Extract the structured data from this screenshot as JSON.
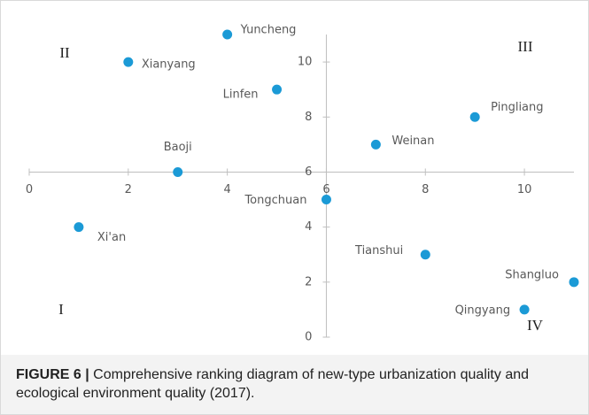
{
  "chart_data": {
    "type": "scatter",
    "labels": [
      "Yuncheng",
      "Xianyang",
      "Linfen",
      "Pingliang",
      "Weinan",
      "Baoji",
      "Tongchuan",
      "Xi'an",
      "Tianshui",
      "Shangluo",
      "Qingyang"
    ],
    "x": [
      4,
      2,
      5,
      9,
      7,
      3,
      6,
      1,
      8,
      11,
      10
    ],
    "values": [
      11,
      10,
      9,
      8,
      7,
      6,
      5,
      4,
      3,
      2,
      1
    ],
    "color": "#1b9ad6",
    "xlim": [
      0,
      11
    ],
    "ylim": [
      0,
      11
    ],
    "xticks": [
      0,
      2,
      4,
      6,
      8,
      10
    ],
    "yticks": [
      0,
      2,
      4,
      6,
      8,
      10
    ],
    "x_axis_at": 6,
    "y_axis_at": 6,
    "annotations": [
      "II",
      "III",
      "I",
      "IV"
    ],
    "caption_label": "FIGURE 6 |",
    "caption_text": "Comprehensive ranking diagram of new-type urbanization quality and ecological environment quality (2017)."
  }
}
